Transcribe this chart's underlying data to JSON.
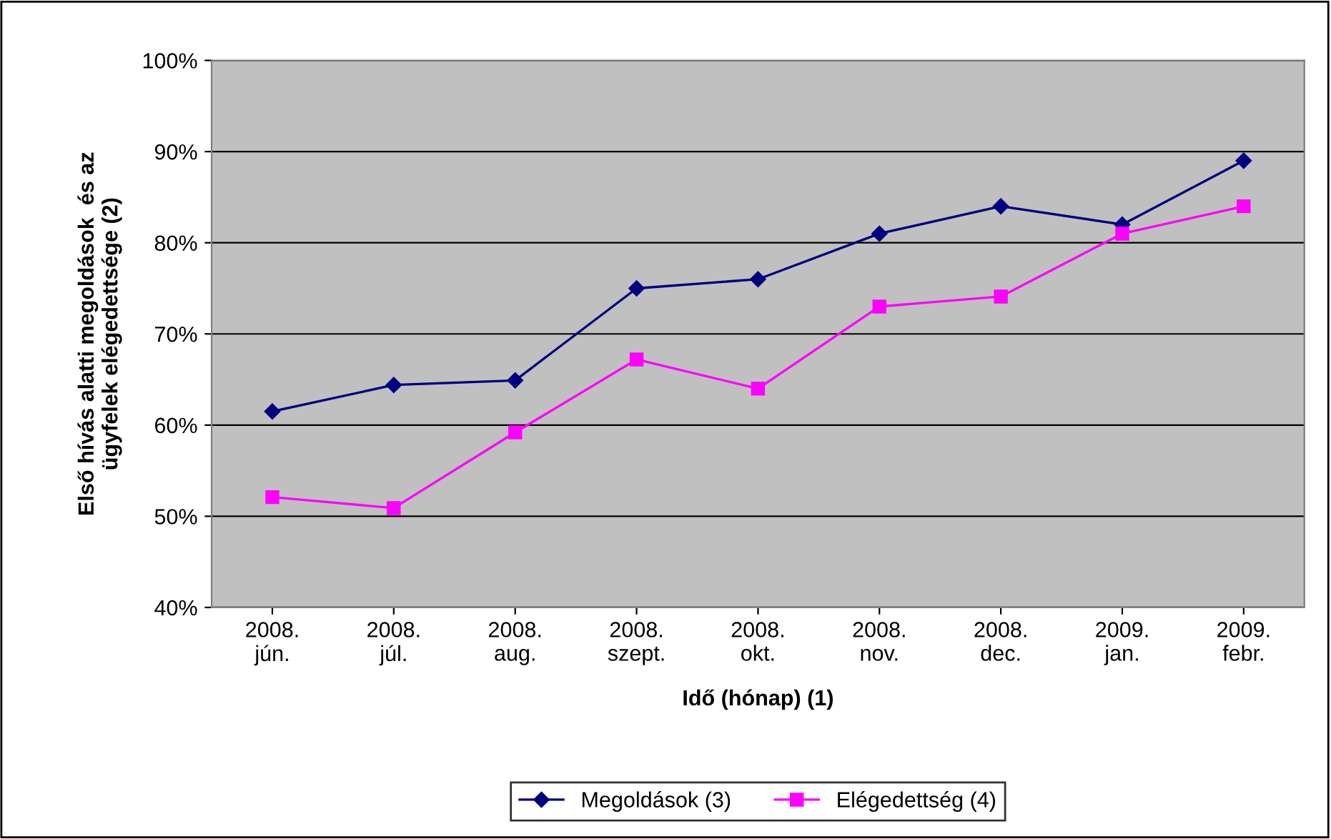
{
  "chart_data": {
    "type": "line",
    "xlabel": "Idő (hónap) (1)",
    "ylabel": "Első hívás alatti megoldások  és az\nügyfelek elégedettsége (2)",
    "categories": [
      "2008.\njún.",
      "2008.\njúl.",
      "2008.\naug.",
      "2008.\nszept.",
      "2008.\nokt.",
      "2008.\nnov.",
      "2008.\ndec.",
      "2009.\njan.",
      "2009.\nfebr."
    ],
    "series": [
      {
        "name": "Megoldások (3)",
        "color": "#000080",
        "marker": "diamond",
        "values": [
          61.5,
          64.4,
          64.9,
          75,
          76,
          81,
          84,
          82,
          89
        ]
      },
      {
        "name": "Elégedettség (4)",
        "color": "#ff00ff",
        "marker": "square",
        "values": [
          52.1,
          50.9,
          59.2,
          67.2,
          64,
          73,
          74.1,
          81,
          84
        ]
      }
    ],
    "ylim": [
      40,
      100
    ],
    "yticks": [
      {
        "value": 40,
        "label": "40%"
      },
      {
        "value": 50,
        "label": "50%"
      },
      {
        "value": 60,
        "label": "60%"
      },
      {
        "value": 70,
        "label": "70%"
      },
      {
        "value": 80,
        "label": "80%"
      },
      {
        "value": 90,
        "label": "90%"
      },
      {
        "value": 100,
        "label": "100%"
      }
    ],
    "grid": "y",
    "legend": "bottom",
    "line_style": "solid"
  }
}
